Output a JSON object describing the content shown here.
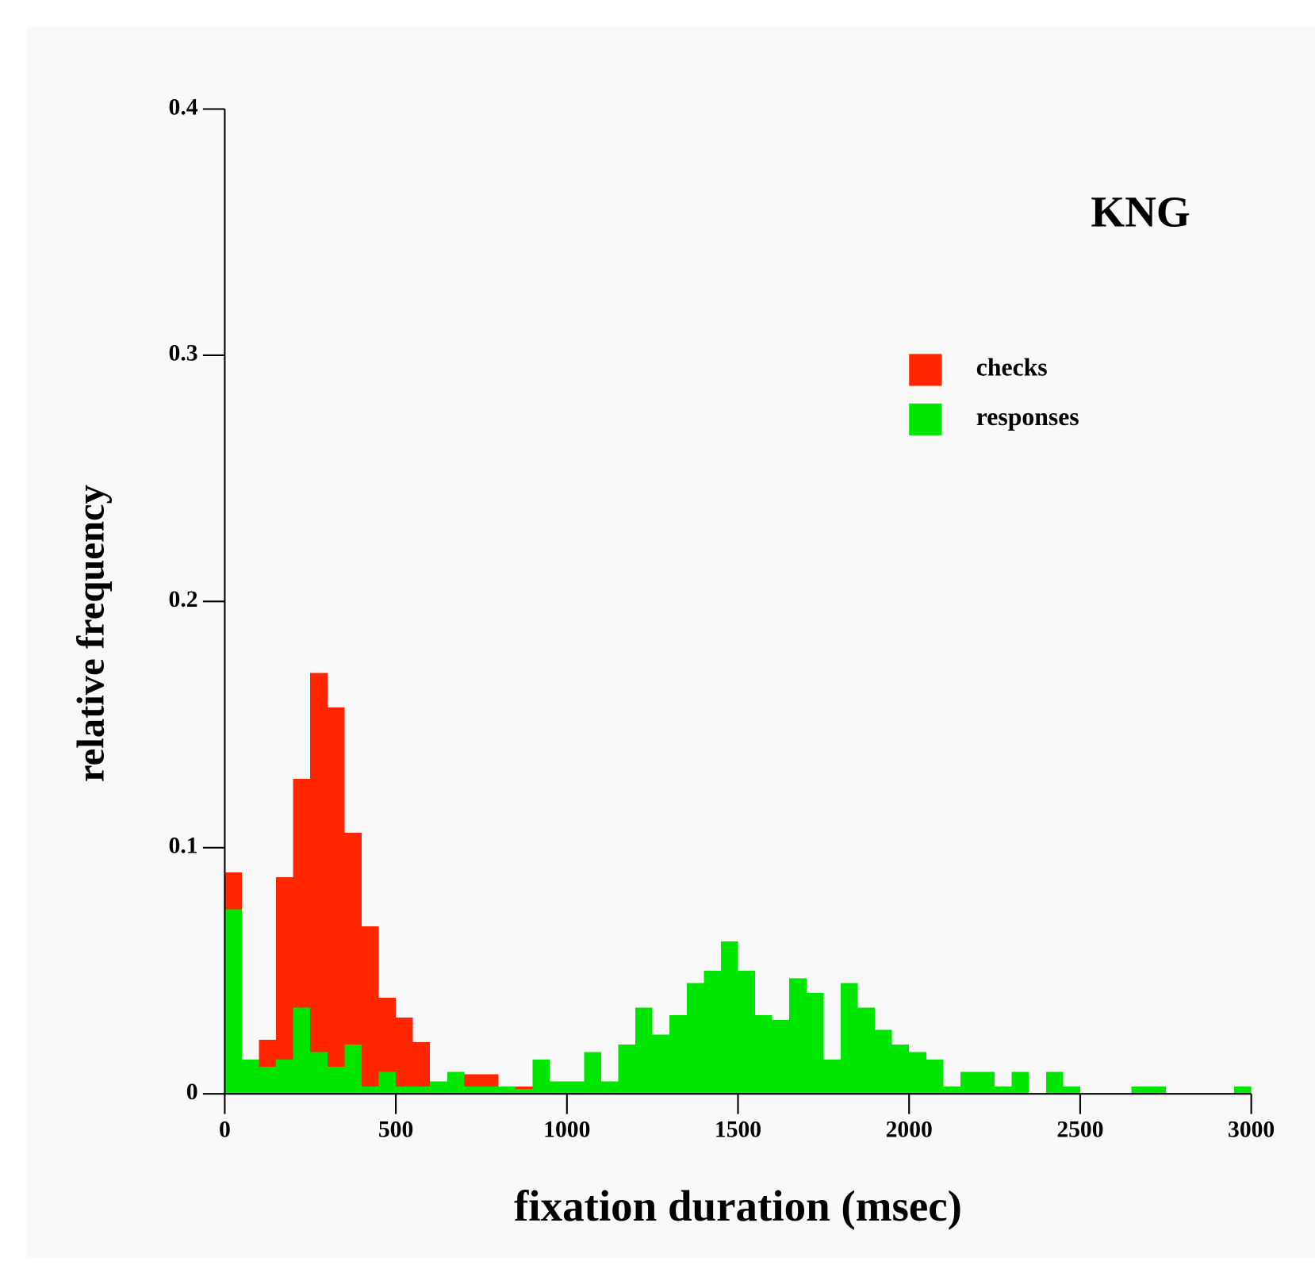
{
  "chart_data": {
    "type": "histogram",
    "title": "KNG",
    "x_label": "fixation duration (msec)",
    "y_label": "relative frequency",
    "bins": [
      0,
      50,
      100,
      150,
      200,
      250,
      300,
      350,
      400,
      450,
      500,
      550,
      600,
      650,
      700,
      750,
      800,
      850,
      900,
      950,
      1000,
      1050,
      1100,
      1150,
      1200,
      1250,
      1300,
      1350,
      1400,
      1450,
      1500,
      1550,
      1600,
      1650,
      1700,
      1750,
      1800,
      1850,
      1900,
      1950,
      2000,
      2050,
      2100,
      2150,
      2200,
      2250,
      2300,
      2350,
      2400,
      2450,
      2500,
      2550,
      2600,
      2650,
      2700,
      2750,
      2800,
      2850,
      2900,
      2950,
      3000
    ],
    "series": [
      {
        "name": "checks",
        "color": "#ff2600",
        "values": [
          0.09,
          0.013,
          0.022,
          0.088,
          0.128,
          0.171,
          0.157,
          0.106,
          0.068,
          0.039,
          0.031,
          0.021,
          0,
          0.008,
          0.008,
          0.008,
          0.001,
          0.003,
          0.001,
          0.001,
          0,
          0.001,
          0.002,
          0,
          0,
          0.001,
          0.001,
          0,
          0,
          0.001,
          0,
          0.001,
          0,
          0.001,
          0,
          0,
          0,
          0,
          0,
          0,
          0,
          0,
          0,
          0,
          0,
          0,
          0,
          0,
          0,
          0,
          0,
          0,
          0,
          0,
          0,
          0,
          0,
          0,
          0,
          0
        ]
      },
      {
        "name": "responses",
        "color": "#00e600",
        "values": [
          0.075,
          0.014,
          0.011,
          0.014,
          0.035,
          0.017,
          0.011,
          0.02,
          0.003,
          0.009,
          0.003,
          0.003,
          0.005,
          0.009,
          0.003,
          0.003,
          0.003,
          0.002,
          0.014,
          0.005,
          0.005,
          0.017,
          0.005,
          0.02,
          0.035,
          0.024,
          0.032,
          0.045,
          0.05,
          0.062,
          0.05,
          0.032,
          0.03,
          0.047,
          0.041,
          0.014,
          0.045,
          0.035,
          0.026,
          0.02,
          0.017,
          0.014,
          0.003,
          0.009,
          0.009,
          0.003,
          0.009,
          0,
          0.009,
          0.003,
          0,
          0,
          0,
          0.003,
          0.003,
          0,
          0,
          0,
          0,
          0.003
        ]
      }
    ],
    "xlim": [
      0,
      3000
    ],
    "xticks": [
      0,
      500,
      1000,
      1500,
      2000,
      2500,
      3000
    ],
    "ylim": [
      0,
      0.4
    ],
    "yticks": [
      0,
      0.1,
      0.2,
      0.3,
      0.4
    ]
  }
}
